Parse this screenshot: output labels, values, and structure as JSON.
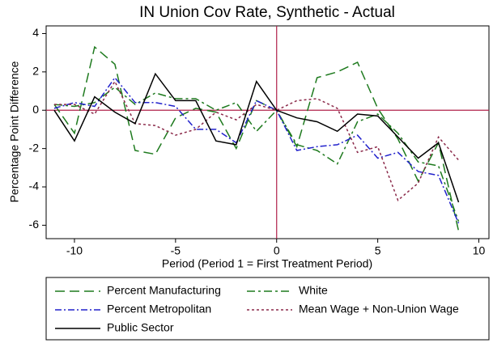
{
  "chart_data": {
    "type": "line",
    "title": "IN Union Cov Rate, Synthetic - Actual",
    "x_label": "Period (Period 1 = First Treatment Period)",
    "y_label": "Percentage Point Difference",
    "x": [
      -11,
      -10,
      -9,
      -8,
      -7,
      -6,
      -5,
      -4,
      -3,
      -2,
      -1,
      0,
      1,
      2,
      3,
      4,
      5,
      6,
      7,
      8,
      9
    ],
    "series": [
      {
        "name": "Percent Manufacturing",
        "color": "#1e7a1e",
        "values": [
          0.3,
          -1.2,
          3.3,
          2.4,
          -2.1,
          -2.3,
          -0.4,
          0.1,
          -0.1,
          -2.0,
          0.5,
          0,
          -1.9,
          1.7,
          2.0,
          2.5,
          0.1,
          -1.5,
          -3.7,
          -1.7,
          -6.3
        ]
      },
      {
        "name": "White",
        "color": "#1e7a1e",
        "values": [
          0.3,
          0.2,
          0.4,
          1.2,
          0.3,
          0.9,
          0.6,
          0.6,
          0.0,
          0.4,
          -1.1,
          0,
          -1.8,
          -2.1,
          -2.8,
          -0.6,
          -0.2,
          -1.2,
          -2.7,
          -2.9,
          -5.8
        ]
      },
      {
        "name": "Percent Metropolitan",
        "color": "#2222cc",
        "values": [
          0.1,
          0.4,
          0.2,
          1.7,
          0.4,
          0.4,
          0.2,
          -1.0,
          -1.0,
          -1.7,
          0.5,
          0,
          -2.1,
          -1.9,
          -1.8,
          -1.3,
          -2.5,
          -2.2,
          -3.2,
          -3.4,
          -5.9
        ]
      },
      {
        "name": "Mean Wage + Non-Union Wage",
        "color": "#8b2a4a",
        "values": [
          0.3,
          0.3,
          -0.2,
          1.5,
          -0.7,
          -0.8,
          -1.3,
          -1.0,
          -0.1,
          -0.5,
          0.3,
          0,
          0.5,
          0.6,
          0.1,
          -2.2,
          -1.9,
          -4.7,
          -3.8,
          -1.4,
          -2.6
        ]
      },
      {
        "name": "Public Sector",
        "color": "#000000",
        "values": [
          0.0,
          -1.6,
          0.7,
          -0.1,
          -0.7,
          1.9,
          0.5,
          0.5,
          -1.6,
          -1.8,
          1.5,
          0,
          -0.4,
          -0.6,
          -1.1,
          -0.2,
          -0.3,
          -1.4,
          -2.5,
          -1.7,
          -4.8
        ]
      }
    ],
    "xlim": [
      -11.4,
      10.5
    ],
    "ylim": [
      -6.7,
      4.4
    ],
    "xticks": [
      -10,
      -5,
      0,
      5,
      10
    ],
    "yticks": [
      -6,
      -4,
      -2,
      0,
      2,
      4
    ],
    "xline": 0,
    "yline": 0,
    "refline_color": "#b0204a"
  }
}
